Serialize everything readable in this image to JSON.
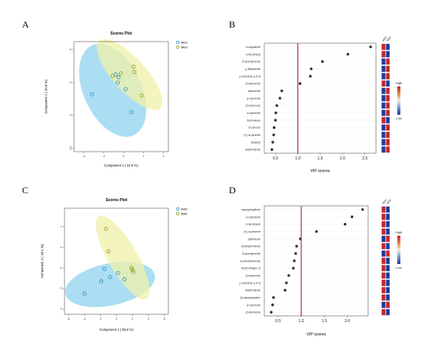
{
  "panel_letters": {
    "a": "A",
    "b": "B",
    "c": "C",
    "d": "D"
  },
  "vip_color_key": {
    "high": "High",
    "low": "Low"
  },
  "colors": {
    "group1_ellipse": "#8fd3ef",
    "group2_ellipse": "#f0f0a8",
    "group1_point": "#2a8fb8",
    "group2_point": "#8c9a12",
    "vip_cutoff_line": "#b8323a",
    "heat_high": "#c4262e",
    "heat_low": "#1f3a9c"
  },
  "chart_data": [
    {
      "id": "A",
      "type": "scatter",
      "title": "Scores Plot",
      "xlabel": "Component 1 ( 41.6 %)",
      "ylabel": "Component 2 ( 40.9 %)",
      "xlim": [
        -5,
        4.5
      ],
      "ylim": [
        -10.5,
        6.2
      ],
      "xticks": [
        -4,
        -2,
        0,
        2,
        4
      ],
      "yticks": [
        -10,
        -5,
        0,
        5
      ],
      "legend": [
        "MEC",
        "MEV"
      ],
      "legend_position": "top-right",
      "ellipses": [
        {
          "group": "MEC",
          "cx": -1.1,
          "cy": -1.2,
          "rx": 3.5,
          "ry": 6.0,
          "angle": 25
        },
        {
          "group": "MEV",
          "cx": 0.6,
          "cy": 1.2,
          "rx": 2.0,
          "ry": 5.5,
          "angle": 42
        }
      ],
      "series": [
        {
          "name": "MEC",
          "points": [
            [
              -3.2,
              -1.8
            ],
            [
              -0.5,
              0.8
            ],
            [
              0.2,
              -1.0
            ],
            [
              0.8,
              -4.5
            ],
            [
              -0.8,
              1.2
            ],
            [
              -0.6,
              0.0
            ]
          ]
        },
        {
          "name": "MEV",
          "points": [
            [
              1.0,
              2.4
            ],
            [
              1.1,
              1.6
            ],
            [
              1.8,
              -2.0
            ],
            [
              -1.1,
              1.0
            ],
            [
              -0.3,
              1.4
            ]
          ]
        }
      ]
    },
    {
      "id": "B",
      "type": "scatter",
      "xlabel": "VIP scores",
      "xlim": [
        0.25,
        2.75
      ],
      "xticks": [
        0.5,
        1.0,
        1.5,
        2.0,
        2.5
      ],
      "cutoff": 1.0,
      "heatmap_columns": [
        "MEC",
        "MEV"
      ],
      "features": [
        {
          "name": "α-copaene",
          "vip": 2.63,
          "heat": [
            "high",
            "low"
          ]
        },
        {
          "name": "α-terpineol",
          "vip": 2.12,
          "heat": [
            "high",
            "low"
          ]
        },
        {
          "name": "δ-amorphene",
          "vip": 1.55,
          "heat": [
            "low",
            "high"
          ]
        },
        {
          "name": "γ-terpinene",
          "vip": 1.3,
          "heat": [
            "low",
            "high"
          ]
        },
        {
          "name": "p-mentha-1,5-d",
          "vip": 1.28,
          "heat": [
            "low",
            "high"
          ]
        },
        {
          "name": "β-elemene",
          "vip": 1.05,
          "heat": [
            "high",
            "low"
          ]
        },
        {
          "name": "sabinene",
          "vip": 0.64,
          "heat": [
            "low",
            "high"
          ]
        },
        {
          "name": "p-cymene",
          "vip": 0.6,
          "heat": [
            "low",
            "high"
          ]
        },
        {
          "name": "β-myrcene",
          "vip": 0.53,
          "heat": [
            "low",
            "high"
          ]
        },
        {
          "name": "o-cymene",
          "vip": 0.51,
          "heat": [
            "low",
            "high"
          ]
        },
        {
          "name": "humulene",
          "vip": 0.5,
          "heat": [
            "high",
            "low"
          ]
        },
        {
          "name": "3-carene",
          "vip": 0.47,
          "heat": [
            "low",
            "high"
          ]
        },
        {
          "name": "(+)-α-pinene",
          "vip": 0.46,
          "heat": [
            "low",
            "high"
          ]
        },
        {
          "name": "linalool",
          "vip": 0.44,
          "heat": [
            "low",
            "high"
          ]
        },
        {
          "name": "terpinolene",
          "vip": 0.42,
          "heat": [
            "low",
            "high"
          ]
        }
      ]
    },
    {
      "id": "C",
      "type": "scatter",
      "title": "Scores Plot",
      "xlabel": "Component 1 ( 55.4 %)",
      "ylabel": "Component 2 ( 18.1 %)",
      "xlim": [
        -6.5,
        6.5
      ],
      "ylim": [
        -4.5,
        5.8
      ],
      "xticks": [
        -6,
        -4,
        -2,
        0,
        2,
        4,
        6
      ],
      "yticks": [
        -4,
        -2,
        0,
        2,
        4
      ],
      "legend": [
        "MAC",
        "MAV"
      ],
      "legend_position": "top-right",
      "ellipses": [
        {
          "group": "MAC",
          "cx": -0.8,
          "cy": -1.6,
          "rx": 5.0,
          "ry": 2.3,
          "angle": 12
        },
        {
          "group": "MAV",
          "cx": 0.8,
          "cy": 1.0,
          "rx": 1.6,
          "ry": 5.2,
          "angle": 30
        }
      ],
      "series": [
        {
          "name": "MAC",
          "points": [
            [
              -1.5,
              -0.1
            ],
            [
              -0.8,
              -0.9
            ],
            [
              -4.0,
              -2.5
            ],
            [
              0.2,
              -0.5
            ],
            [
              1.0,
              -1.1
            ],
            [
              -1.9,
              -1.3
            ]
          ]
        },
        {
          "name": "MAV",
          "points": [
            [
              -1.3,
              3.8
            ],
            [
              -1.0,
              1.6
            ],
            [
              1.9,
              0.0
            ],
            [
              2.0,
              -0.2
            ],
            [
              2.1,
              -0.4
            ]
          ]
        }
      ]
    },
    {
      "id": "D",
      "type": "scatter",
      "xlabel": "VIP scores",
      "xlim": [
        0.2,
        2.45
      ],
      "xticks": [
        0.5,
        1.0,
        1.5,
        2.0
      ],
      "cutoff": 1.0,
      "heatmap_columns": [
        "MAC",
        "MAV"
      ],
      "features": [
        {
          "name": "caryophyllene",
          "vip": 2.33,
          "heat": [
            "high",
            "low"
          ]
        },
        {
          "name": "α-copaene",
          "vip": 2.1,
          "heat": [
            "high",
            "low"
          ]
        },
        {
          "name": "α-terpineol",
          "vip": 1.95,
          "heat": [
            "high",
            "low"
          ]
        },
        {
          "name": "(+)-α-pinene",
          "vip": 1.33,
          "heat": [
            "high",
            "low"
          ]
        },
        {
          "name": "sabinene",
          "vip": 0.98,
          "heat": [
            "low",
            "high"
          ]
        },
        {
          "name": "isoterpinolene",
          "vip": 0.9,
          "heat": [
            "high",
            "low"
          ]
        },
        {
          "name": "δ-amorphene",
          "vip": 0.88,
          "heat": [
            "low",
            "high"
          ]
        },
        {
          "name": "α-phellandrene",
          "vip": 0.85,
          "heat": [
            "high",
            "low"
          ]
        },
        {
          "name": "4(10)-thujen-3",
          "vip": 0.83,
          "heat": [
            "high",
            "low"
          ]
        },
        {
          "name": "β-myrcene",
          "vip": 0.73,
          "heat": [
            "high",
            "low"
          ]
        },
        {
          "name": "p-mentha-1,5-d",
          "vip": 0.68,
          "heat": [
            "high",
            "low"
          ]
        },
        {
          "name": "terpinolene",
          "vip": 0.65,
          "heat": [
            "high",
            "low"
          ]
        },
        {
          "name": "β-caryophyllen",
          "vip": 0.4,
          "heat": [
            "high",
            "low"
          ]
        },
        {
          "name": "p-cymene",
          "vip": 0.38,
          "heat": [
            "low",
            "high"
          ]
        },
        {
          "name": "β-elemene",
          "vip": 0.35,
          "heat": [
            "high",
            "low"
          ]
        }
      ]
    }
  ]
}
